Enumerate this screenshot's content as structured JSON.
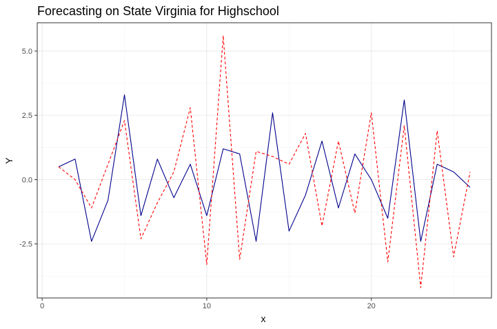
{
  "chart_data": {
    "type": "line",
    "title": "Forecasting on State Virginia for Highschool",
    "xlabel": "x",
    "ylabel": "Y",
    "xlim": [
      -0.3,
      27.3
    ],
    "ylim": [
      -4.6,
      6.1
    ],
    "x_ticks": [
      0,
      10,
      20
    ],
    "x_tick_labels": [
      "0",
      "10",
      "20"
    ],
    "y_ticks": [
      -2.5,
      0,
      2.5,
      5
    ],
    "y_tick_labels": [
      "-2.5",
      "0.0",
      "2.5",
      "5.0"
    ],
    "grid": true,
    "legend": "none",
    "x": [
      1,
      2,
      3,
      4,
      5,
      6,
      7,
      8,
      9,
      10,
      11,
      12,
      13,
      14,
      15,
      16,
      17,
      18,
      19,
      20,
      21,
      22,
      23,
      24,
      25,
      26
    ],
    "series": [
      {
        "color": "#00008b",
        "dash": "solid",
        "values": [
          0.5,
          0.8,
          -2.4,
          -0.8,
          3.3,
          -1.4,
          0.8,
          -0.7,
          0.6,
          -1.4,
          1.2,
          1.0,
          -2.4,
          2.6,
          -2.0,
          -0.6,
          1.5,
          -1.1,
          1.0,
          0.0,
          -1.5,
          3.1,
          -2.4,
          0.6,
          0.3,
          -0.3
        ]
      },
      {
        "color": "#ff0000",
        "dash": "dashed",
        "values": [
          0.5,
          0.0,
          -1.1,
          0.6,
          2.3,
          -2.3,
          -0.9,
          0.3,
          2.8,
          -3.3,
          5.6,
          -3.1,
          1.1,
          0.9,
          0.6,
          1.8,
          -1.8,
          1.5,
          -1.3,
          2.6,
          -3.2,
          2.1,
          -4.2,
          1.9,
          -3.0,
          0.3
        ]
      }
    ]
  }
}
